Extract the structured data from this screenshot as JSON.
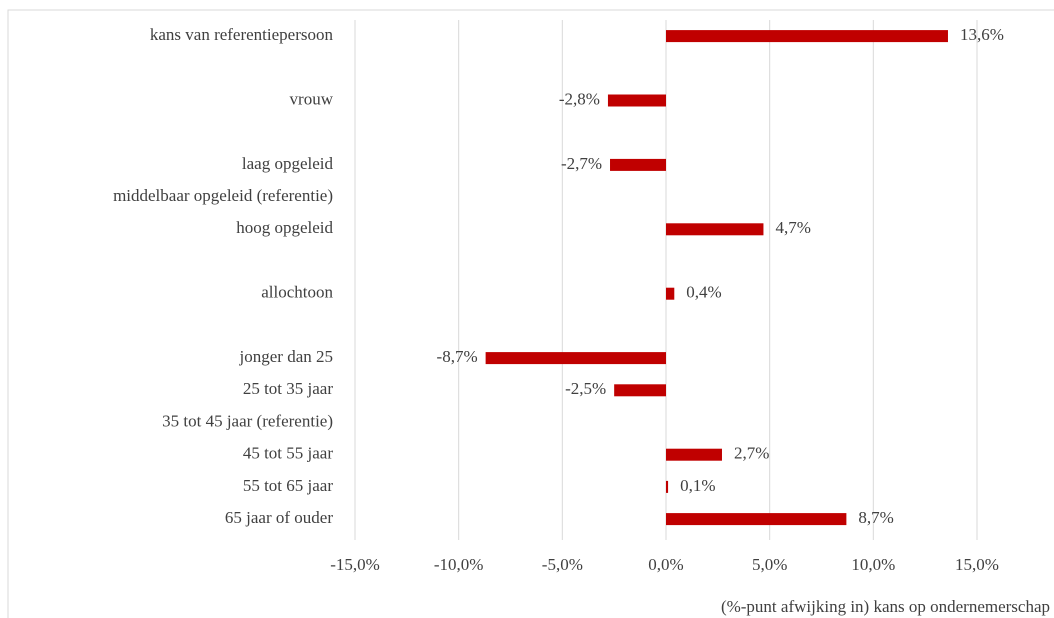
{
  "chart_data": {
    "type": "barh",
    "categories": [
      "kans van referentiepersoon",
      null,
      "vrouw",
      null,
      "laag opgeleid",
      "middelbaar opgeleid (referentie)",
      "hoog opgeleid",
      null,
      "allochtoon",
      null,
      "jonger dan 25",
      "25 tot 35 jaar",
      "35 tot 45 jaar (referentie)",
      "45 tot 55 jaar",
      "55 tot 65 jaar",
      "65 jaar of ouder"
    ],
    "values": [
      13.6,
      null,
      -2.8,
      null,
      -2.7,
      null,
      4.7,
      null,
      0.4,
      null,
      -8.7,
      -2.5,
      null,
      2.7,
      0.1,
      8.7
    ],
    "value_labels": [
      "13,6%",
      null,
      "-2,8%",
      null,
      "-2,7%",
      null,
      "4,7%",
      null,
      "0,4%",
      null,
      "-8,7%",
      "-2,5%",
      null,
      "2,7%",
      "0,1%",
      "8,7%"
    ],
    "color": "#c00000",
    "xlim": [
      -15,
      15
    ],
    "xticks": [
      {
        "value": -15,
        "label": "-15,0%"
      },
      {
        "value": -10,
        "label": "-10,0%"
      },
      {
        "value": -5,
        "label": "-5,0%"
      },
      {
        "value": 0,
        "label": "0,0%"
      },
      {
        "value": 5,
        "label": "5,0%"
      },
      {
        "value": 10,
        "label": "10,0%"
      },
      {
        "value": 15,
        "label": "15,0%"
      }
    ],
    "x_label": "(%-punt afwijking in) kans op ondernemerschap",
    "grid": true
  }
}
